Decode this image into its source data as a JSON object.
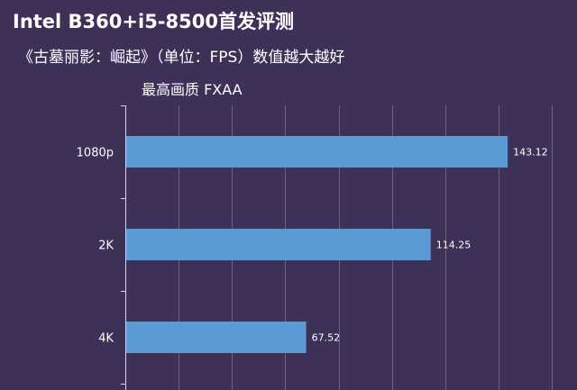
{
  "title": "Intel B360+i5-8500首发评测",
  "subtitle": "《古墓丽影：崛起》（单位：FPS）数值越大越好",
  "note": "最高画质 FXAA",
  "colors": {
    "background": "#3d3157",
    "bar": "#5b9bd5",
    "grid": "#6b5f82",
    "text": "#ffffff"
  },
  "chart_data": {
    "type": "bar",
    "orientation": "horizontal",
    "categories": [
      "1080p",
      "2K",
      "4K"
    ],
    "values": [
      143.12,
      114.25,
      67.52
    ],
    "value_labels": [
      "143.12",
      "114.25",
      "67.52"
    ],
    "xlim": [
      0,
      160
    ],
    "grid": true
  }
}
